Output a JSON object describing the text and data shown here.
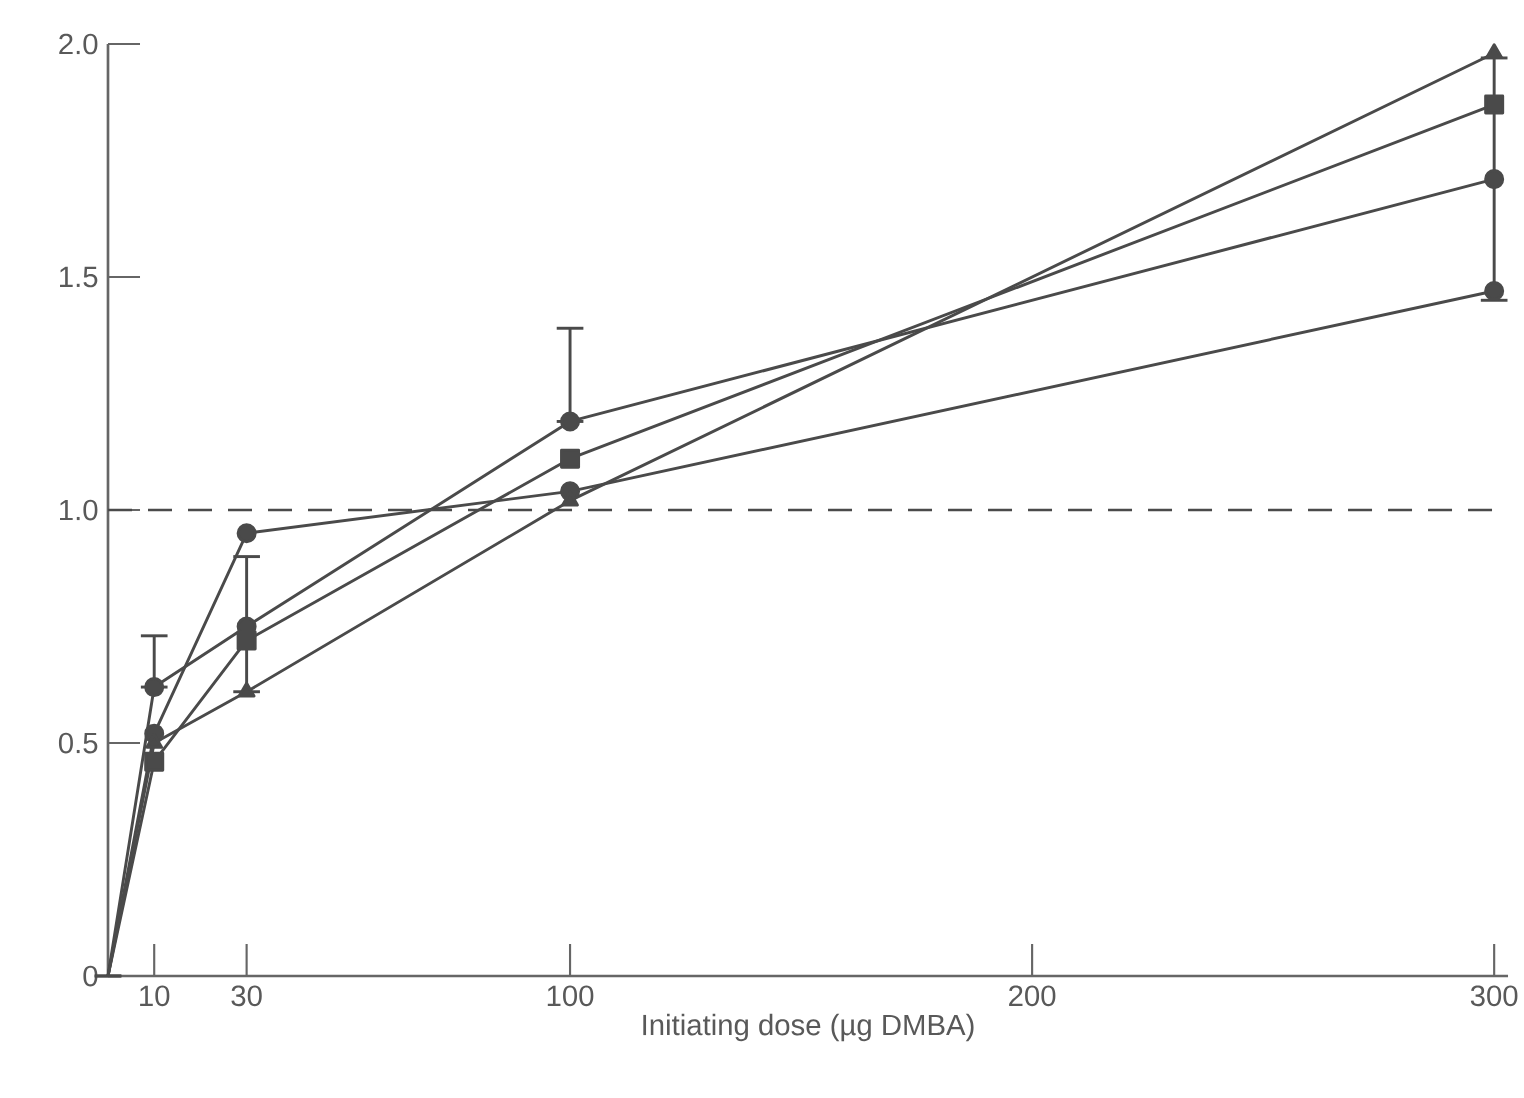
{
  "chart_data": {
    "type": "line",
    "xlabel": "Initiating dose (µg DMBA)",
    "x": [
      0,
      10,
      30,
      100,
      300
    ],
    "xlim": [
      0,
      303
    ],
    "xticks": [
      10,
      30,
      100,
      200,
      300
    ],
    "ylim": [
      0,
      2.0
    ],
    "yticks": [
      0,
      {
        "value": 0.5,
        "label": "0.5"
      },
      {
        "value": 1.0,
        "label": "1.0"
      },
      {
        "value": 1.5,
        "label": "1.5"
      },
      {
        "value": 2.0,
        "label": "2.0"
      }
    ],
    "grid": false,
    "line_style": "solid",
    "series": [
      {
        "color": "#4a4a4a",
        "marker": "circle",
        "values": [
          0,
          0.52,
          0.95,
          1.04,
          1.47
        ]
      },
      {
        "color": "#4a4a4a",
        "marker": "circle",
        "values": [
          0,
          0.62,
          0.75,
          1.19,
          1.71
        ],
        "errors": [
          null,
          [
            0.62,
            0.73
          ],
          [
            0.61,
            0.9
          ],
          [
            1.19,
            1.39
          ],
          0.26
        ]
      },
      {
        "color": "#4a4a4a",
        "marker": "square",
        "values": [
          0,
          0.46,
          0.72,
          1.11,
          1.87
        ]
      },
      {
        "color": "#4a4a4a",
        "marker": "triangle",
        "values": [
          0,
          0.5,
          0.61,
          1.02,
          1.98
        ]
      }
    ],
    "ref_lines": [
      {
        "axis": "y",
        "value": 1.0,
        "color": "#4a4a4a",
        "line_style": "dashed"
      }
    ]
  }
}
